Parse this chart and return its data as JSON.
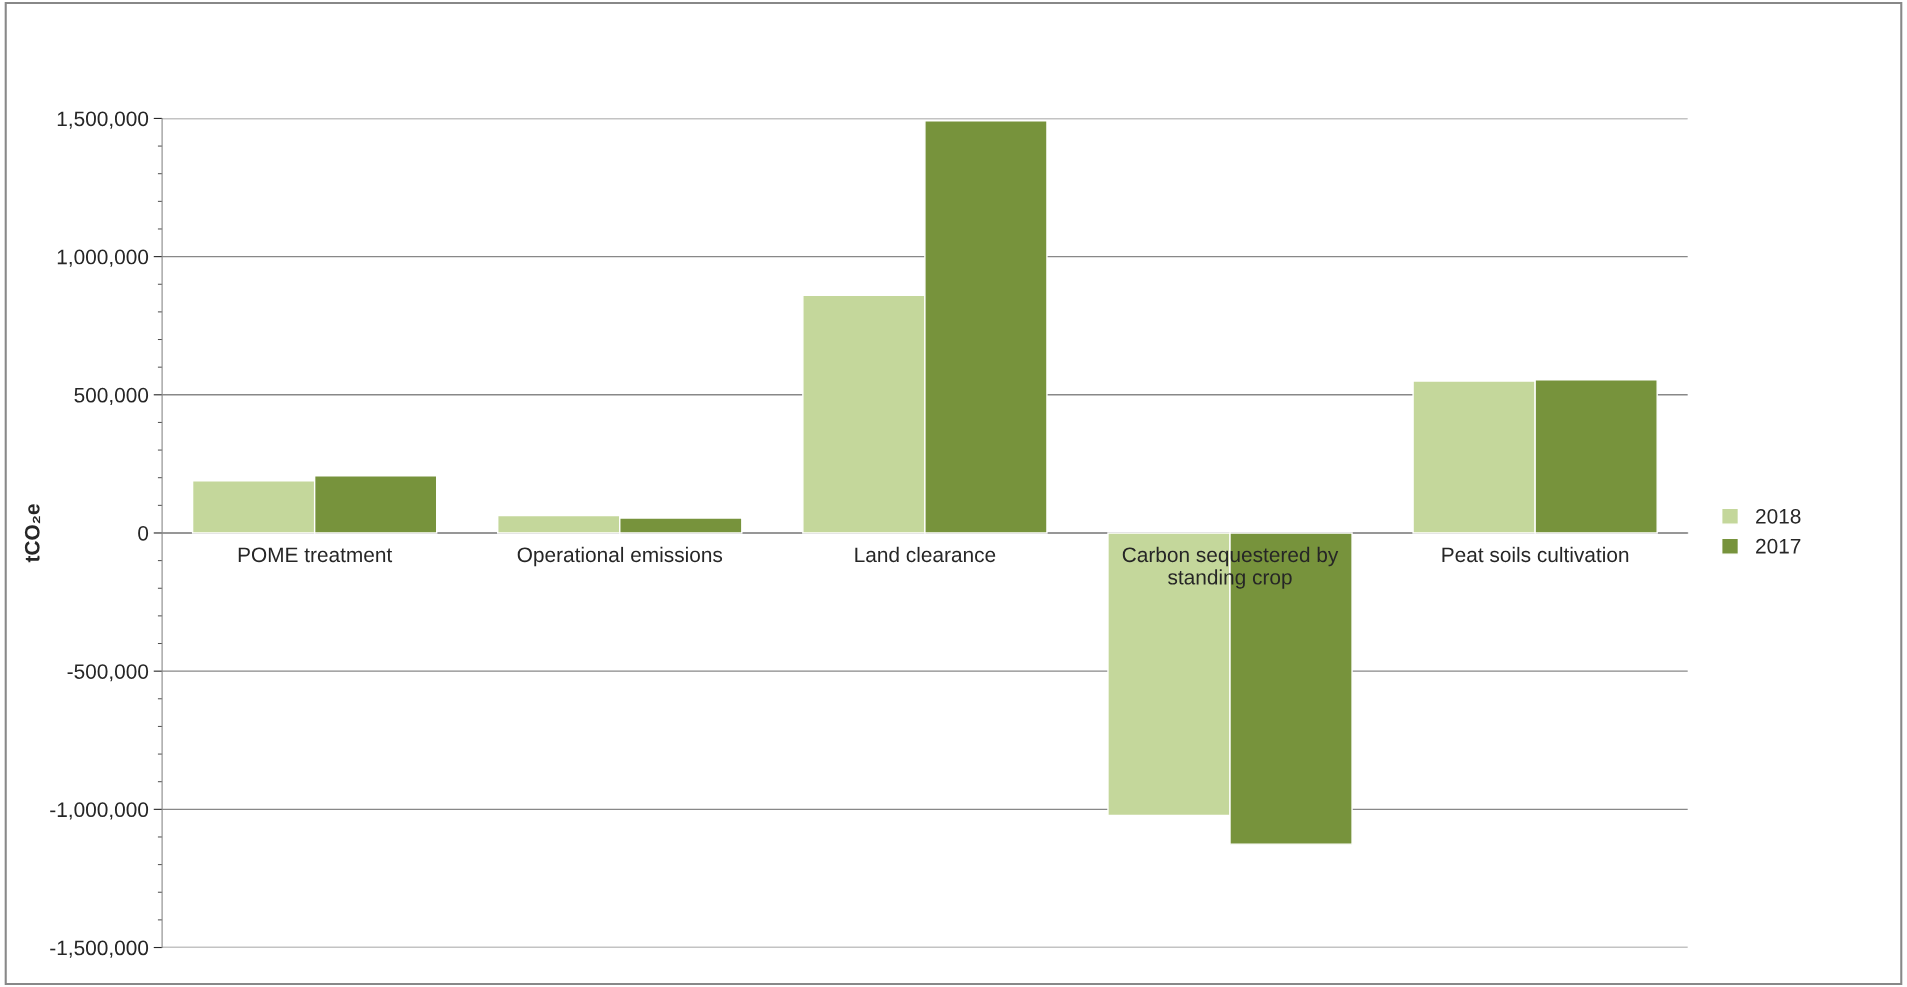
{
  "chart_data": {
    "type": "bar",
    "ylabel": "tCO₂e",
    "categories": [
      "POME treatment",
      "Operational emissions",
      "Land clearance",
      "Carbon sequestered by\nstanding crop",
      "Peat soils cultivation"
    ],
    "series": [
      {
        "name": "2018",
        "color": "#c4d79b",
        "values": [
          189000,
          63000,
          860000,
          -1022000,
          550000
        ]
      },
      {
        "name": "2017",
        "color": "#77933c",
        "values": [
          207000,
          54000,
          1491000,
          -1126000,
          554000
        ]
      }
    ],
    "ylim": [
      -1500000,
      1500000
    ],
    "yticks": [
      {
        "value": -1500000,
        "label": "-1,500,000"
      },
      {
        "value": -1000000,
        "label": "-1,000,000"
      },
      {
        "value": -500000,
        "label": "-500,000"
      },
      0,
      {
        "value": 500000,
        "label": "500,000"
      },
      {
        "value": 1000000,
        "label": "1,000,000"
      },
      {
        "value": 1500000,
        "label": "1,500,000"
      }
    ],
    "grid": "y",
    "legend": "right"
  }
}
